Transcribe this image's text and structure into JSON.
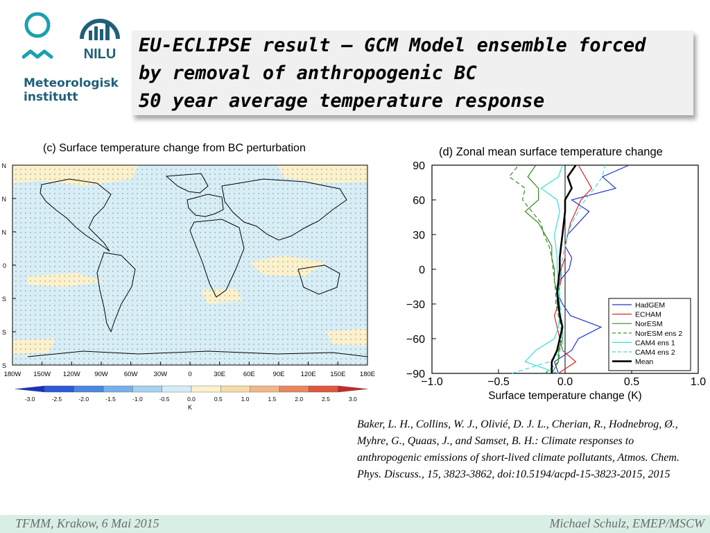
{
  "logos": {
    "met_name_line1": "Meteorologisk",
    "met_name_line2": "institutt",
    "nilu_name": "NILU",
    "colors": {
      "met_primary": "#1aa0b0",
      "met_text": "#1f5f7a",
      "nilu": "#1f5f7a"
    }
  },
  "title": {
    "line1": "EU-ECLIPSE result – GCM Model ensemble forced",
    "line2": "by removal of anthropogenic BC",
    "line3": "50 year average temperature response"
  },
  "map_panel": {
    "title": "(c)  Surface temperature change from BC perturbation",
    "lat_tick_labels": [
      "N",
      "N",
      "N",
      "0",
      "S",
      "S",
      "S"
    ],
    "lon_tick_labels": [
      "180W",
      "150W",
      "120W",
      "90W",
      "60W",
      "30W",
      "0",
      "30E",
      "60E",
      "90E",
      "120E",
      "150E",
      "180E"
    ],
    "colorbar": {
      "tick_labels": [
        "-3.0",
        "-2.5",
        "-2.0",
        "-1.5",
        "-1.0",
        "-0.5",
        "0.0",
        "0.5",
        "1.0",
        "1.5",
        "2.0",
        "2.5",
        "3.0"
      ],
      "unit": "K",
      "colors": [
        "#1830c8",
        "#2c5ad8",
        "#4a88e0",
        "#78b0ec",
        "#a8d2f2",
        "#d4ecf6",
        "#fbf1cc",
        "#f6dca8",
        "#f0b888",
        "#e88860",
        "#de5840",
        "#c82828"
      ]
    },
    "colors": {
      "ocean_land_base": "#d8eef6",
      "warm_patch": "#fbf1cc",
      "coast": "#000000"
    }
  },
  "chart_data": {
    "type": "line",
    "title": "(d)  Zonal mean surface temperature change",
    "xlabel": "Surface temperature change (K)",
    "ylabel": "",
    "xlim": [
      -1.0,
      1.0
    ],
    "ylim": [
      -90,
      90
    ],
    "x_tick_labels": [
      "−1.0",
      "−0.5",
      "0.0",
      "0.5",
      "1.0"
    ],
    "y_tick_labels": [
      "90",
      "60",
      "30",
      "0",
      "−30",
      "−60",
      "−90"
    ],
    "x_ticks": [
      -1.0,
      -0.5,
      0.0,
      0.5,
      1.0
    ],
    "y_ticks": [
      90,
      60,
      30,
      0,
      -30,
      -60,
      -90
    ],
    "legend_position": "bottom-right",
    "y_grid": [
      -90,
      -80,
      -70,
      -60,
      -50,
      -40,
      -30,
      -20,
      -10,
      0,
      10,
      20,
      30,
      40,
      50,
      60,
      70,
      80,
      90
    ],
    "series": [
      {
        "name": "HadGEM",
        "color": "#2233cc",
        "dash": "solid",
        "values": [
          -0.05,
          -0.08,
          0.05,
          0.1,
          0.27,
          0.04,
          -0.02,
          -0.06,
          -0.04,
          0.03,
          0.05,
          0.0,
          0.02,
          0.1,
          0.18,
          0.05,
          0.38,
          0.28,
          0.48
        ]
      },
      {
        "name": "ECHAM",
        "color": "#dd2222",
        "dash": "solid",
        "values": [
          -0.05,
          0.08,
          -0.02,
          -0.04,
          -0.06,
          -0.08,
          -0.05,
          -0.05,
          -0.03,
          -0.03,
          0.0,
          0.0,
          0.02,
          0.04,
          0.08,
          0.12,
          0.2,
          0.15,
          0.1
        ]
      },
      {
        "name": "NorESM",
        "color": "#338822",
        "dash": "solid",
        "values": [
          -0.1,
          -0.05,
          -0.05,
          -0.02,
          -0.02,
          -0.04,
          -0.06,
          -0.06,
          -0.08,
          -0.08,
          -0.1,
          -0.1,
          -0.15,
          -0.2,
          -0.3,
          -0.2,
          -0.2,
          -0.28,
          -0.22
        ]
      },
      {
        "name": "NorESM ens 2",
        "color": "#338822",
        "dash": "dashed",
        "values": [
          -0.15,
          -0.05,
          -0.04,
          -0.03,
          -0.03,
          -0.05,
          -0.07,
          -0.07,
          -0.08,
          -0.09,
          -0.1,
          -0.12,
          -0.16,
          -0.18,
          -0.25,
          -0.32,
          -0.3,
          -0.42,
          -0.35
        ]
      },
      {
        "name": "CAM4 ens 1",
        "color": "#33dddd",
        "dash": "solid",
        "values": [
          -0.05,
          -0.3,
          -0.22,
          -0.08,
          -0.05,
          -0.04,
          -0.04,
          -0.05,
          -0.05,
          -0.06,
          -0.06,
          -0.07,
          -0.08,
          -0.06,
          -0.04,
          -0.06,
          -0.18,
          -0.05,
          -0.02
        ]
      },
      {
        "name": "CAM4 ens 2",
        "color": "#33dddd",
        "dash": "dashed",
        "values": [
          -0.4,
          -0.12,
          -0.02,
          -0.02,
          -0.02,
          -0.03,
          -0.04,
          -0.04,
          -0.04,
          -0.03,
          -0.02,
          0.0,
          0.02,
          0.05,
          0.1,
          0.15,
          0.22,
          0.28,
          0.3
        ]
      },
      {
        "name": "Mean",
        "color": "#000000",
        "dash": "solid",
        "bold": true,
        "values": [
          -0.1,
          -0.1,
          -0.06,
          -0.04,
          -0.02,
          -0.04,
          -0.05,
          -0.06,
          -0.05,
          -0.04,
          -0.04,
          -0.03,
          -0.02,
          -0.01,
          0.0,
          0.0,
          0.05,
          0.02,
          0.08
        ]
      }
    ]
  },
  "citation": {
    "text": "Baker, L. H., Collins, W. J., Olivié, D. J. L., Cherian, R., Hodnebrog, Ø., Myhre, G., Quaas, J., and Samset, B. H.: Climate responses to anthropogenic emissions of short-lived climate pollutants, Atmos. Chem. Phys. Discuss., 15, 3823-3862, doi:10.5194/acpd-15-3823-2015, 2015"
  },
  "footer": {
    "left": "TFMM, Krakow, 6 Mai 2015",
    "right": "Michael Schulz, EMEP/MSCW"
  }
}
